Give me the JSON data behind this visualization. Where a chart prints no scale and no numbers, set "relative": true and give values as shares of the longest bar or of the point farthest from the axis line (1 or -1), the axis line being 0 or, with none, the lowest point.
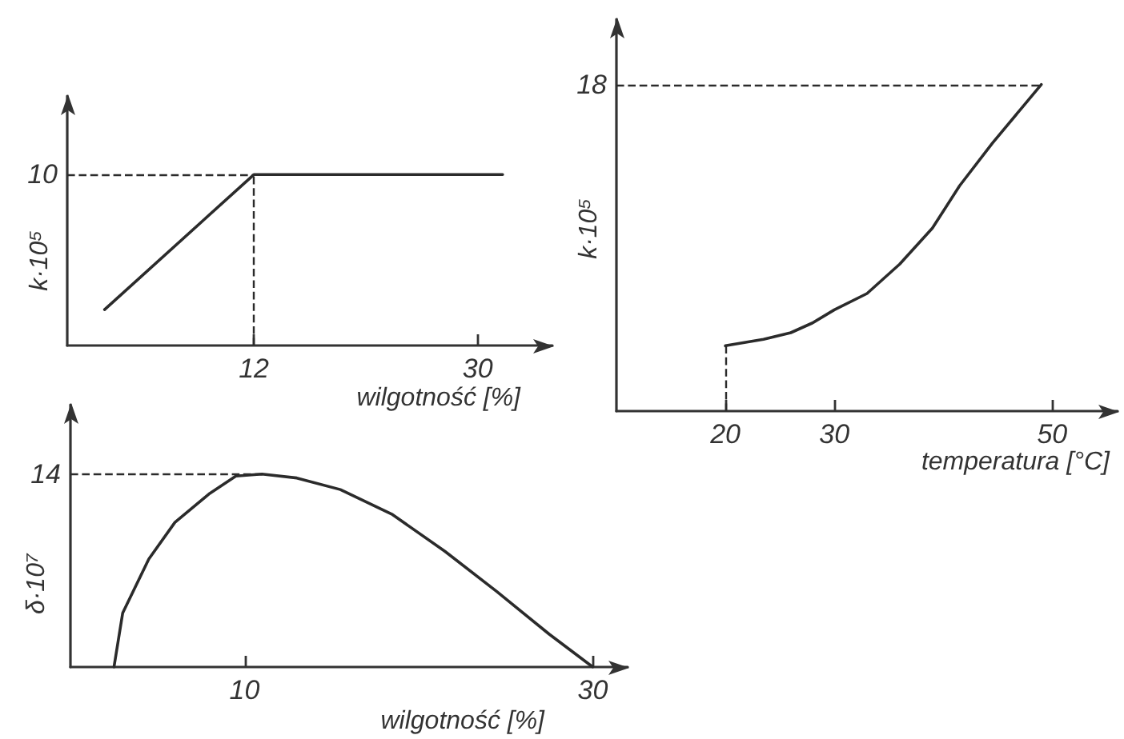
{
  "chart_data": [
    {
      "type": "line",
      "xlabel": "wilgotność [%]",
      "ylabel": "k·10⁵",
      "relative": true,
      "x": [
        0,
        12,
        32
      ],
      "values": [
        0.21,
        1,
        1
      ],
      "color": "#2b2b2b",
      "xlim": [
        -3,
        36
      ],
      "xticks": [
        12,
        30
      ],
      "ref_lines": [
        {
          "axis": "y",
          "value": 1,
          "line_style": "dashed"
        },
        {
          "axis": "x",
          "value": 12,
          "line_style": "dashed"
        }
      ],
      "annotations": [
        "10"
      ],
      "grid": false,
      "marker": "none",
      "line_style": "solid"
    },
    {
      "type": "line",
      "xlabel": "temperatura [°C]",
      "ylabel": "k·10⁵",
      "relative": true,
      "x": [
        20,
        23.5,
        26,
        28,
        30,
        33,
        36,
        39,
        41.5,
        44.5,
        47.5,
        49
      ],
      "values": [
        0.2,
        0.22,
        0.24,
        0.27,
        0.31,
        0.36,
        0.45,
        0.56,
        0.69,
        0.82,
        0.94,
        1
      ],
      "color": "#2b2b2b",
      "xlim": [
        10,
        56
      ],
      "xticks": [
        20,
        30,
        50
      ],
      "ref_lines": [
        {
          "axis": "y",
          "value": 1,
          "line_style": "dashed"
        },
        {
          "axis": "x",
          "value": 20,
          "line_style": "dashed"
        }
      ],
      "annotations": [
        "18"
      ],
      "grid": false,
      "marker": "none",
      "line_style": "solid"
    },
    {
      "type": "line",
      "xlabel": "wilgotność [%]",
      "ylabel": "δ·10⁷",
      "relative": true,
      "x": [
        2.5,
        3,
        4.5,
        6,
        8,
        9.5,
        11,
        13,
        15.5,
        18.5,
        21.5,
        24.5,
        27.5,
        30
      ],
      "values": [
        0,
        0.28,
        0.56,
        0.75,
        0.9,
        0.99,
        1,
        0.98,
        0.92,
        0.79,
        0.6,
        0.39,
        0.17,
        0
      ],
      "color": "#2b2b2b",
      "xlim": [
        0,
        32
      ],
      "xticks": [
        10,
        30
      ],
      "ref_lines": [
        {
          "axis": "y",
          "value": 1,
          "line_style": "dashed"
        }
      ],
      "annotations": [
        "14"
      ],
      "grid": false,
      "marker": "none",
      "line_style": "solid"
    }
  ]
}
